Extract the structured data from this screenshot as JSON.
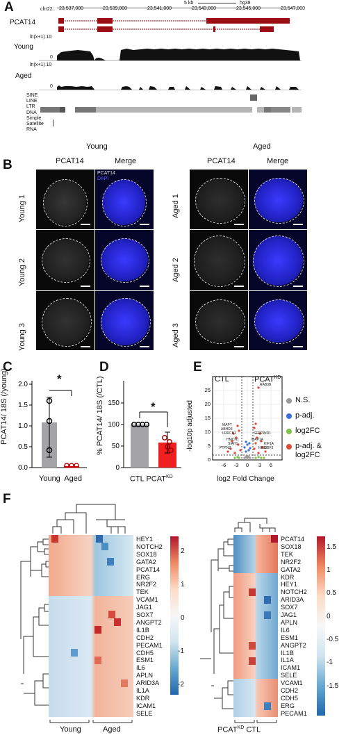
{
  "panelA": {
    "letter": "A",
    "chrom": "chr22:",
    "scale": "5 kb",
    "genome": "hg38",
    "coords": [
      "23,537,000",
      "23,539,000",
      "23,541,000",
      "23,543,000",
      "23,545,000",
      "23,547,000"
    ],
    "gene": "PCAT14",
    "axis_label_top": "ln(x+1) 10",
    "young": "Young",
    "axis_label_mid": "ln(x+1) 10",
    "aged": "Aged",
    "zero": "0",
    "repeats": [
      "SINE",
      "LINE",
      "LTR",
      "DNA",
      "Simple",
      "Satellite",
      "RNA"
    ]
  },
  "panelB": {
    "letter": "B",
    "group_young": "Young",
    "group_aged": "Aged",
    "col_pcat": "PCAT14",
    "col_merge": "Merge",
    "legend_pcat": "PCAT14",
    "legend_dapi": "DAPI",
    "young_rows": [
      "Young 1",
      "Young 2",
      "Young 3"
    ],
    "aged_rows": [
      "Aged 1",
      "Aged 2",
      "Aged 3"
    ]
  },
  "panelC": {
    "letter": "C",
    "ylabel": "PCAT14/ 18S (/young)",
    "xlabel": "Young  Aged",
    "sig": "*",
    "yticks": [
      "0.0",
      "0.5",
      "1.0",
      "1.5",
      "2.0"
    ]
  },
  "panelD": {
    "letter": "D",
    "ylabel": "% PCAT14/ 18S (/CTL)",
    "xlabel_ctl": "CTL",
    "xlabel_kd": "PCAT",
    "xlabel_kd_sup": "KD",
    "sig": "*",
    "yticks": [
      "0",
      "50",
      "100",
      "150"
    ]
  },
  "panelE": {
    "letter": "E",
    "ctl": "CTL",
    "kd": "PCAT",
    "kd_sup": "KD",
    "ylabel": "-log10p adjusted",
    "xlabel": "log2 Fold Change",
    "xticks": [
      "-6",
      "-3",
      "0",
      "3",
      "6"
    ],
    "yticks": [
      "0",
      "5",
      "10",
      "15",
      "20",
      "25"
    ],
    "legend": [
      "N.S.",
      "p-adj.",
      "log2FC",
      "p-adj. & log2FC"
    ],
    "legend_colors": [
      "#9a9a9a",
      "#3a6fd8",
      "#7fc248",
      "#e0483a"
    ],
    "annotations": [
      "RAB3B",
      "MAPT",
      "ABHD3",
      "LRRCH1",
      "SERPIND1",
      "HMCN1",
      "MAP1A",
      "SIAH1",
      "KIF1A",
      "HES2",
      "PTPN2",
      "DGF3"
    ]
  },
  "panelF": {
    "letter": "F",
    "left_genes": [
      "HEY1",
      "NOTCH2",
      "SOX18",
      "GATA2",
      "PCAT14",
      "ERG",
      "NR2F2",
      "TEK",
      "VCAM1",
      "JAG1",
      "SOX7",
      "ANGPT2",
      "IL1B",
      "CDH2",
      "PECAM1",
      "CDH5",
      "ESM1",
      "IL6",
      "APLN",
      "ARID3A",
      "IL1A",
      "KDR",
      "ICAM1",
      "SELE"
    ],
    "left_scale": [
      "2",
      "1",
      "0",
      "-1",
      "-2"
    ],
    "left_groups": [
      "Young",
      "Aged"
    ],
    "right_genes": [
      "PCAT14",
      "SOX18",
      "TEK",
      "NR2F2",
      "GATA2",
      "KDR",
      "HEY1",
      "NOTCH2",
      "ARID3A",
      "SOX7",
      "JAG1",
      "APLN",
      "IL6",
      "ESM1",
      "ANGPT2",
      "IL1B",
      "IL1A",
      "ICAM1",
      "SELE",
      "VCAM1",
      "CDH2",
      "CDH5",
      "ERG",
      "PECAM1"
    ],
    "right_scale": [
      "1.5",
      "1",
      "0.5",
      "0",
      "-0.5",
      "-1",
      "-1.5"
    ],
    "right_group_kd": "PCAT",
    "right_group_kd_sup": "KD",
    "right_group_ctl": "CTL"
  }
}
